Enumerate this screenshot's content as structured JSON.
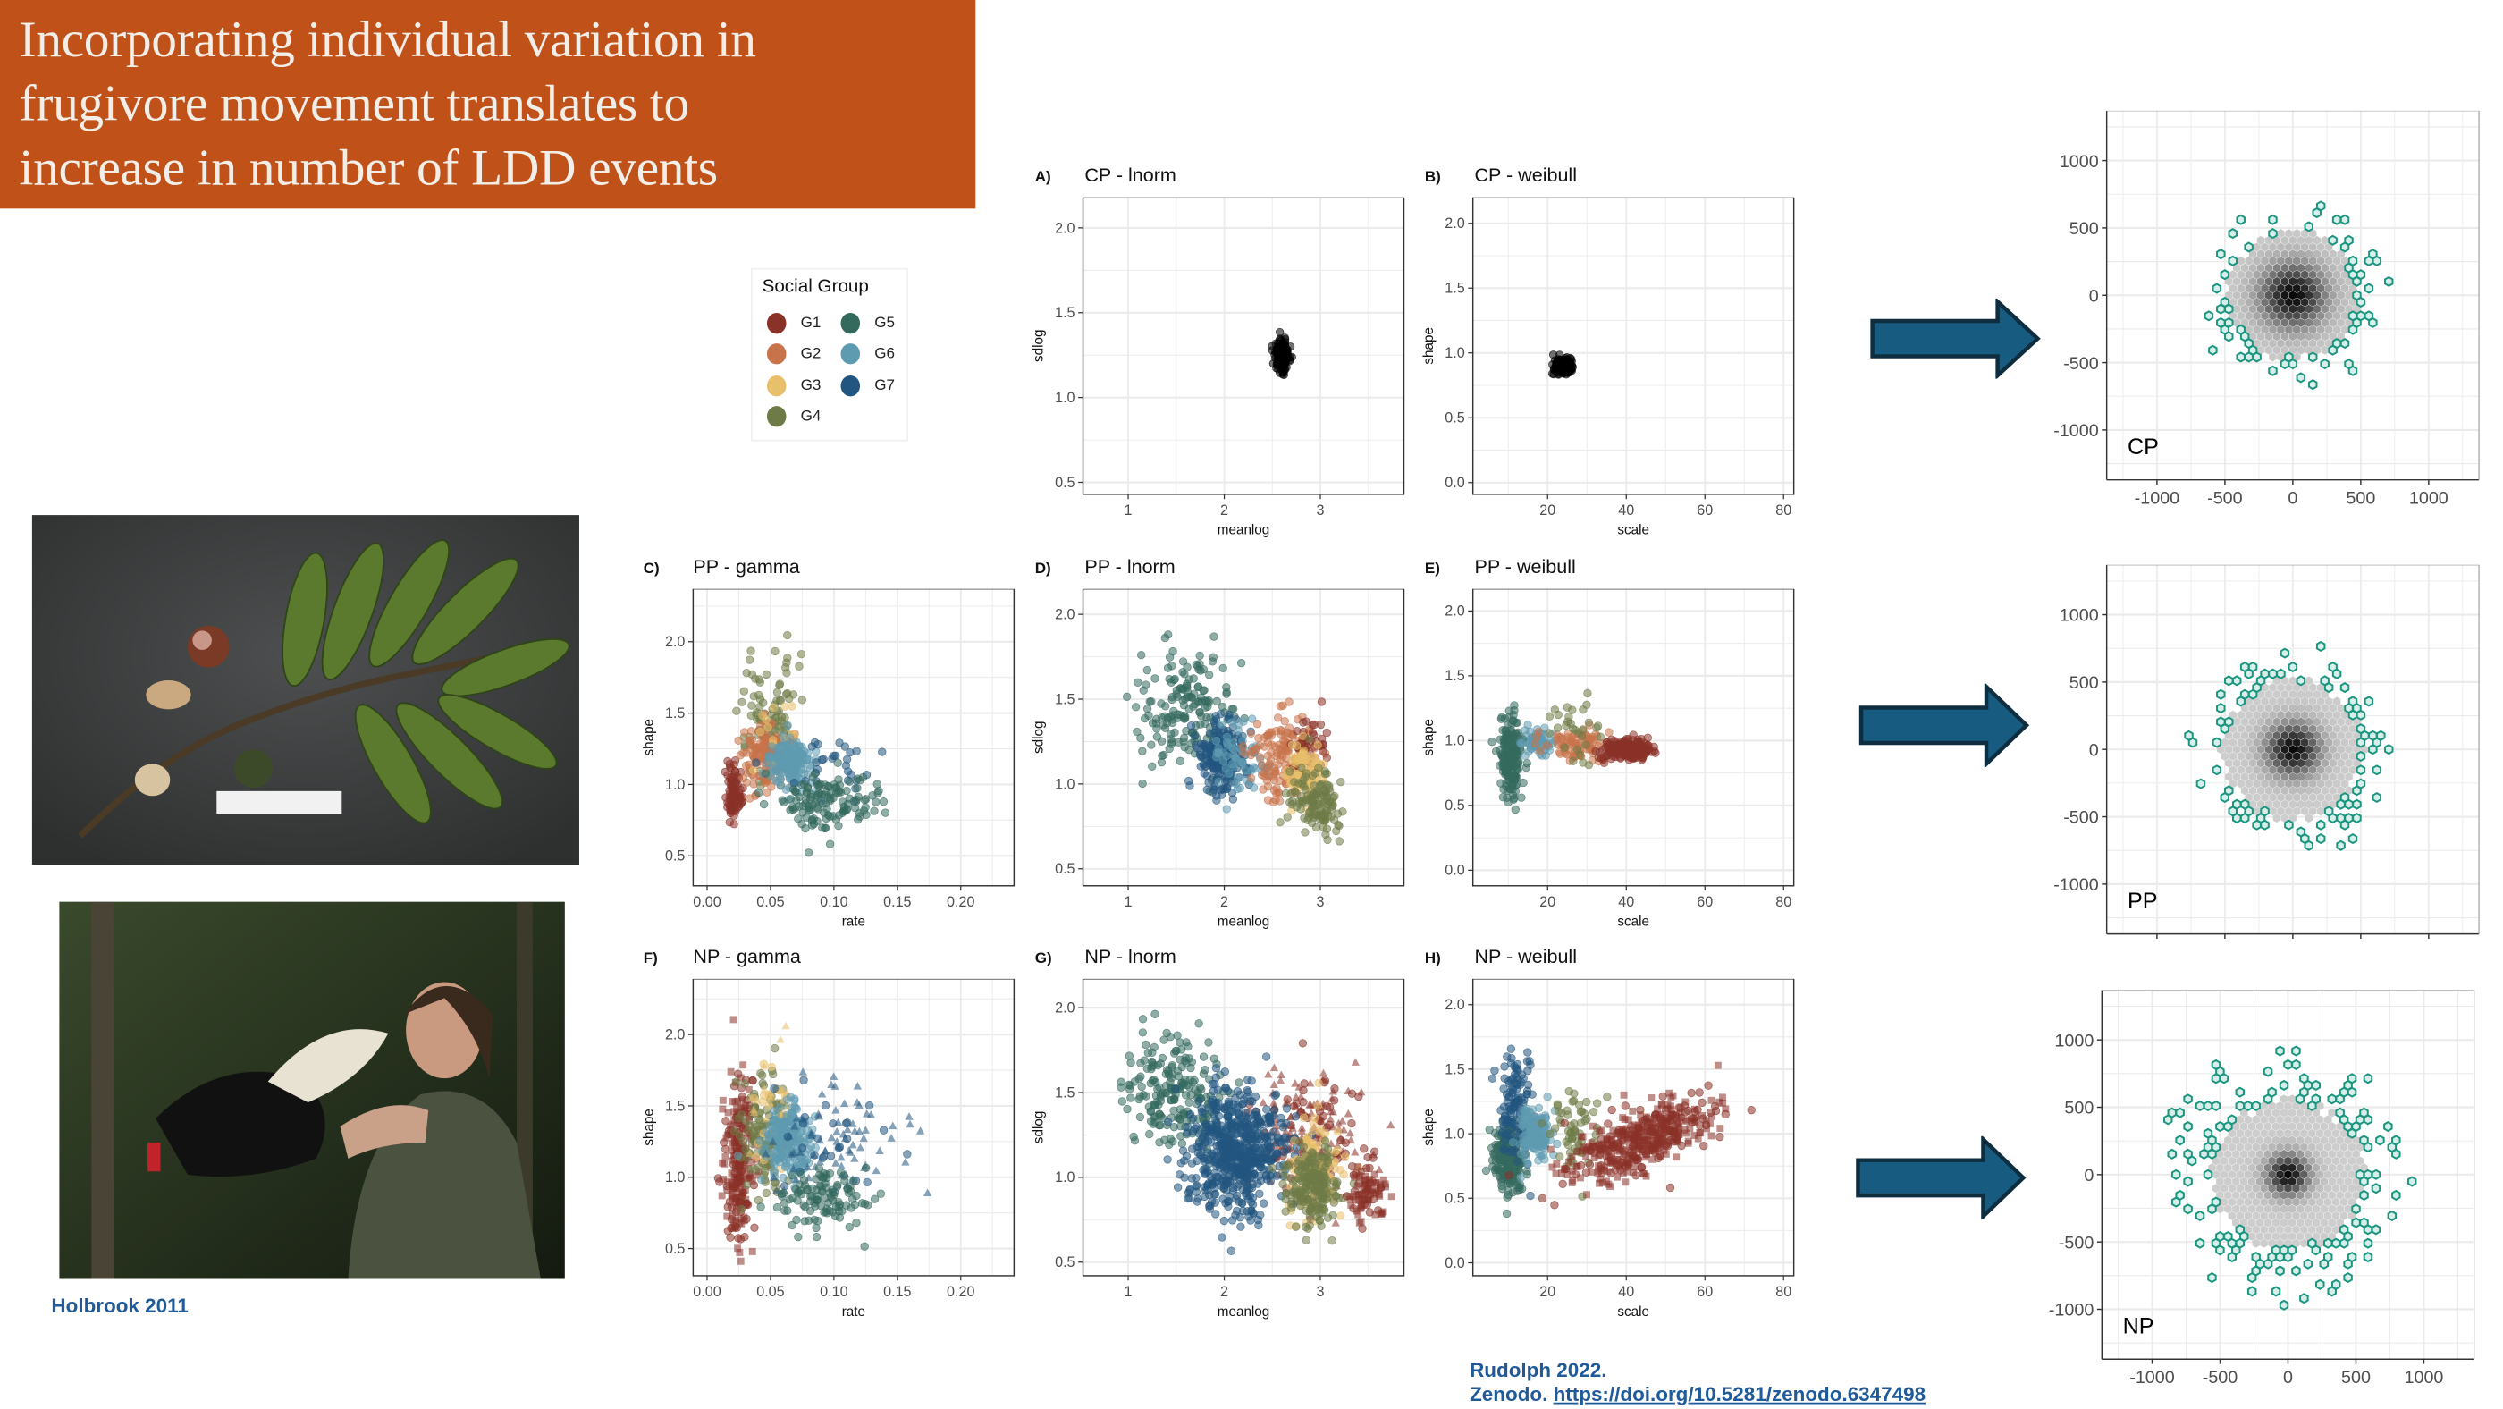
{
  "title": {
    "lines": [
      "Incorporating individual variation in",
      "frugivore movement translates to",
      "increase in number of LDD events"
    ],
    "background": "#BF5119"
  },
  "legend": {
    "title": "Social Group",
    "items": [
      {
        "label": "G1",
        "color": "#8A3228"
      },
      {
        "label": "G2",
        "color": "#C8734A"
      },
      {
        "label": "G3",
        "color": "#E8C06C"
      },
      {
        "label": "G4",
        "color": "#6F7B47"
      },
      {
        "label": "G5",
        "color": "#346A5E"
      },
      {
        "label": "G6",
        "color": "#5E9AB0"
      },
      {
        "label": "G7",
        "color": "#22557F"
      }
    ]
  },
  "photo_credit": "Holbrook 2011",
  "citation": {
    "line1": "Rudolph 2022.",
    "prefix": "Zenodo.",
    "link": "https://doi.org/10.5281/zenodo.6347498"
  },
  "arrow_color": "#175C80",
  "chart_data": {
    "scatter_panels": [
      {
        "tag": "A)",
        "title": "CP - lnorm",
        "type": "scatter",
        "xlabel": "meanlog",
        "ylabel": "sdlog",
        "xlim": [
          0.53,
          3.87
        ],
        "ylim": [
          0.43,
          2.18
        ],
        "xticks": [
          1,
          2,
          3
        ],
        "yticks": [
          0.5,
          1.0,
          1.5,
          2.0
        ],
        "ydec": 1,
        "xdec": 0,
        "clusters": [
          {
            "group": "black",
            "x": 2.6,
            "y": 1.25,
            "sx": 0.04,
            "sy": 0.045,
            "n": 160
          }
        ]
      },
      {
        "tag": "B)",
        "title": "CP - weibull",
        "type": "scatter",
        "xlabel": "scale",
        "ylabel": "shape",
        "xlim": [
          1,
          82.6
        ],
        "ylim": [
          -0.09,
          2.2
        ],
        "xticks": [
          20,
          40,
          60,
          80
        ],
        "yticks": [
          0.0,
          0.5,
          1.0,
          1.5,
          2.0
        ],
        "ydec": 1,
        "xdec": 0,
        "clusters": [
          {
            "group": "black",
            "x": 24,
            "y": 0.9,
            "sx": 1.1,
            "sy": 0.03,
            "n": 160
          }
        ]
      },
      {
        "tag": "C)",
        "title": "PP - gamma",
        "type": "scatter",
        "xlabel": "rate",
        "ylabel": "shape",
        "xlim": [
          -0.011,
          0.242
        ],
        "ylim": [
          0.29,
          2.37
        ],
        "xticks": [
          0.0,
          0.05,
          0.1,
          0.15,
          0.2
        ],
        "yticks": [
          0.5,
          1.0,
          1.5,
          2.0
        ],
        "ydec": 1,
        "xdec": 2,
        "clusters": [
          {
            "group": "G1",
            "x": 0.021,
            "y": 0.92,
            "sx": 0.003,
            "sy": 0.09,
            "n": 90
          },
          {
            "group": "G4",
            "x": 0.05,
            "y": 1.45,
            "sx": 0.011,
            "sy": 0.2,
            "n": 110
          },
          {
            "group": "G2",
            "x": 0.046,
            "y": 1.22,
            "sx": 0.009,
            "sy": 0.11,
            "n": 130
          },
          {
            "group": "G3",
            "x": 0.055,
            "y": 1.3,
            "sx": 0.008,
            "sy": 0.15,
            "n": 15
          },
          {
            "group": "G6",
            "x": 0.066,
            "y": 1.15,
            "sx": 0.008,
            "sy": 0.09,
            "n": 160
          },
          {
            "group": "G7",
            "x": 0.1,
            "y": 1.15,
            "sx": 0.02,
            "sy": 0.13,
            "n": 30
          },
          {
            "group": "G5",
            "x": 0.094,
            "y": 0.86,
            "sx": 0.02,
            "sy": 0.1,
            "n": 130
          }
        ]
      },
      {
        "tag": "D)",
        "title": "PP - lnorm",
        "type": "scatter",
        "xlabel": "meanlog",
        "ylabel": "sdlog",
        "xlim": [
          0.53,
          3.87
        ],
        "ylim": [
          0.4,
          2.15
        ],
        "xticks": [
          1,
          2,
          3
        ],
        "yticks": [
          0.5,
          1.0,
          1.5,
          2.0
        ],
        "ydec": 1,
        "xdec": 0,
        "clusters": [
          {
            "group": "G5",
            "x": 1.6,
            "y": 1.45,
            "sx": 0.25,
            "sy": 0.17,
            "n": 170
          },
          {
            "group": "G7",
            "x": 2.0,
            "y": 1.15,
            "sx": 0.14,
            "sy": 0.11,
            "n": 210
          },
          {
            "group": "G6",
            "x": 2.2,
            "y": 1.18,
            "sx": 0.14,
            "sy": 0.1,
            "n": 60
          },
          {
            "group": "G2",
            "x": 2.6,
            "y": 1.15,
            "sx": 0.15,
            "sy": 0.12,
            "n": 130
          },
          {
            "group": "G1",
            "x": 2.9,
            "y": 1.25,
            "sx": 0.1,
            "sy": 0.1,
            "n": 40
          },
          {
            "group": "G3",
            "x": 2.85,
            "y": 1.05,
            "sx": 0.1,
            "sy": 0.09,
            "n": 90
          },
          {
            "group": "G4",
            "x": 2.95,
            "y": 0.9,
            "sx": 0.14,
            "sy": 0.09,
            "n": 130
          }
        ]
      },
      {
        "tag": "E)",
        "title": "PP - weibull",
        "type": "scatter",
        "xlabel": "scale",
        "ylabel": "shape",
        "xlim": [
          1,
          82.6
        ],
        "ylim": [
          -0.12,
          2.17
        ],
        "xticks": [
          20,
          40,
          60,
          80
        ],
        "yticks": [
          0.0,
          0.5,
          1.0,
          1.5,
          2.0
        ],
        "ydec": 1,
        "xdec": 0,
        "clusters": [
          {
            "group": "G5",
            "x": 10.5,
            "y": 0.88,
            "sx": 1.6,
            "sy": 0.17,
            "n": 190
          },
          {
            "group": "G6",
            "x": 17,
            "y": 1.0,
            "sx": 2,
            "sy": 0.06,
            "n": 60
          },
          {
            "group": "G2",
            "x": 27,
            "y": 0.98,
            "sx": 4,
            "sy": 0.06,
            "n": 80
          },
          {
            "group": "G4",
            "x": 28,
            "y": 1.1,
            "sx": 4,
            "sy": 0.13,
            "n": 30
          },
          {
            "group": "G1",
            "x": 40,
            "y": 0.93,
            "sx": 3,
            "sy": 0.04,
            "n": 220
          }
        ]
      },
      {
        "tag": "F)",
        "title": "NP - gamma",
        "type": "scatter",
        "xlabel": "rate",
        "ylabel": "shape",
        "xlim": [
          -0.011,
          0.242
        ],
        "ylim": [
          0.31,
          2.39
        ],
        "xticks": [
          0.0,
          0.05,
          0.1,
          0.15,
          0.2
        ],
        "yticks": [
          0.5,
          1.0,
          1.5,
          2.0
        ],
        "ydec": 1,
        "xdec": 2,
        "clusters": [
          {
            "group": "G1",
            "x": 0.025,
            "y": 1.1,
            "sx": 0.006,
            "sy": 0.28,
            "n": 230,
            "shape": "square"
          },
          {
            "group": "G4",
            "x": 0.045,
            "y": 1.3,
            "sx": 0.01,
            "sy": 0.2,
            "n": 120
          },
          {
            "group": "G3",
            "x": 0.05,
            "y": 1.5,
            "sx": 0.01,
            "sy": 0.2,
            "n": 40,
            "shape": "triangle"
          },
          {
            "group": "G6",
            "x": 0.065,
            "y": 1.25,
            "sx": 0.01,
            "sy": 0.13,
            "n": 200
          },
          {
            "group": "G7",
            "x": 0.1,
            "y": 1.25,
            "sx": 0.025,
            "sy": 0.2,
            "n": 100,
            "shape": "triangle"
          },
          {
            "group": "G5",
            "x": 0.09,
            "y": 0.85,
            "sx": 0.02,
            "sy": 0.12,
            "n": 110
          }
        ]
      },
      {
        "tag": "G)",
        "title": "NP - lnorm",
        "type": "scatter",
        "xlabel": "meanlog",
        "ylabel": "sdlog",
        "xlim": [
          0.53,
          3.87
        ],
        "ylim": [
          0.42,
          2.17
        ],
        "xticks": [
          1,
          2,
          3
        ],
        "yticks": [
          0.5,
          1.0,
          1.5,
          2.0
        ],
        "ydec": 1,
        "xdec": 0,
        "clusters": [
          {
            "group": "G5",
            "x": 1.5,
            "y": 1.5,
            "sx": 0.25,
            "sy": 0.17,
            "n": 200
          },
          {
            "group": "G1",
            "x": 2.9,
            "y": 1.25,
            "sx": 0.3,
            "sy": 0.2,
            "n": 200,
            "shape": "triangle"
          },
          {
            "group": "G7",
            "x": 2.15,
            "y": 1.15,
            "sx": 0.25,
            "sy": 0.17,
            "n": 600
          },
          {
            "group": "G3",
            "x": 2.95,
            "y": 1.05,
            "sx": 0.15,
            "sy": 0.15,
            "n": 120
          },
          {
            "group": "G4",
            "x": 2.9,
            "y": 0.95,
            "sx": 0.14,
            "sy": 0.12,
            "n": 200
          },
          {
            "group": "G1",
            "x": 3.5,
            "y": 0.9,
            "sx": 0.1,
            "sy": 0.08,
            "n": 80,
            "shape": "square"
          }
        ]
      },
      {
        "tag": "H)",
        "title": "NP - weibull",
        "type": "scatter",
        "xlabel": "scale",
        "ylabel": "shape",
        "xlim": [
          1,
          82.6
        ],
        "ylim": [
          -0.1,
          2.2
        ],
        "xticks": [
          20,
          40,
          60,
          80
        ],
        "yticks": [
          0.0,
          0.5,
          1.0,
          1.5,
          2.0
        ],
        "ydec": 1,
        "xdec": 0,
        "clusters": [
          {
            "group": "G5",
            "x": 10,
            "y": 0.83,
            "sx": 2,
            "sy": 0.14,
            "n": 200
          },
          {
            "group": "G7",
            "x": 12,
            "y": 1.2,
            "sx": 2,
            "sy": 0.22,
            "n": 120
          },
          {
            "group": "G6",
            "x": 17,
            "y": 1.02,
            "sx": 2,
            "sy": 0.1,
            "n": 150
          },
          {
            "group": "G4",
            "x": 27,
            "y": 1.05,
            "sx": 3,
            "sy": 0.15,
            "n": 60
          },
          {
            "group": "G1",
            "x": 44,
            "y": 0.95,
            "sx": 10,
            "sy": 0.12,
            "n": 420,
            "shape": "square",
            "slope": 0.012
          }
        ]
      }
    ],
    "hex_panels": [
      {
        "label": "CP",
        "type": "hexbin",
        "xlim": [
          -1370,
          1370
        ],
        "ylim": [
          -1370,
          1370
        ],
        "xticks": [
          -1000,
          -500,
          0,
          500,
          1000
        ],
        "yticks": [
          -1000,
          -500,
          0,
          500,
          1000
        ],
        "show_xtick_labels": true,
        "core_radius": 480,
        "density_sd": 170,
        "outlier_max_radius": 720,
        "outlier_rate": 0.55
      },
      {
        "label": "PP",
        "type": "hexbin",
        "xlim": [
          -1370,
          1370
        ],
        "ylim": [
          -1370,
          1370
        ],
        "xticks": [
          -1000,
          -500,
          0,
          500,
          1000
        ],
        "yticks": [
          -1000,
          -500,
          0,
          500,
          1000
        ],
        "show_xtick_labels": false,
        "core_radius": 520,
        "density_sd": 140,
        "outlier_max_radius": 800,
        "outlier_rate": 0.5
      },
      {
        "label": "NP",
        "type": "hexbin",
        "xlim": [
          -1370,
          1370
        ],
        "ylim": [
          -1370,
          1370
        ],
        "xticks": [
          -1000,
          -500,
          0,
          500,
          1000
        ],
        "yticks": [
          -1000,
          -500,
          0,
          500,
          1000
        ],
        "show_xtick_labels": true,
        "core_radius": 560,
        "density_sd": 110,
        "outlier_max_radius": 1000,
        "outlier_rate": 0.45
      }
    ]
  }
}
